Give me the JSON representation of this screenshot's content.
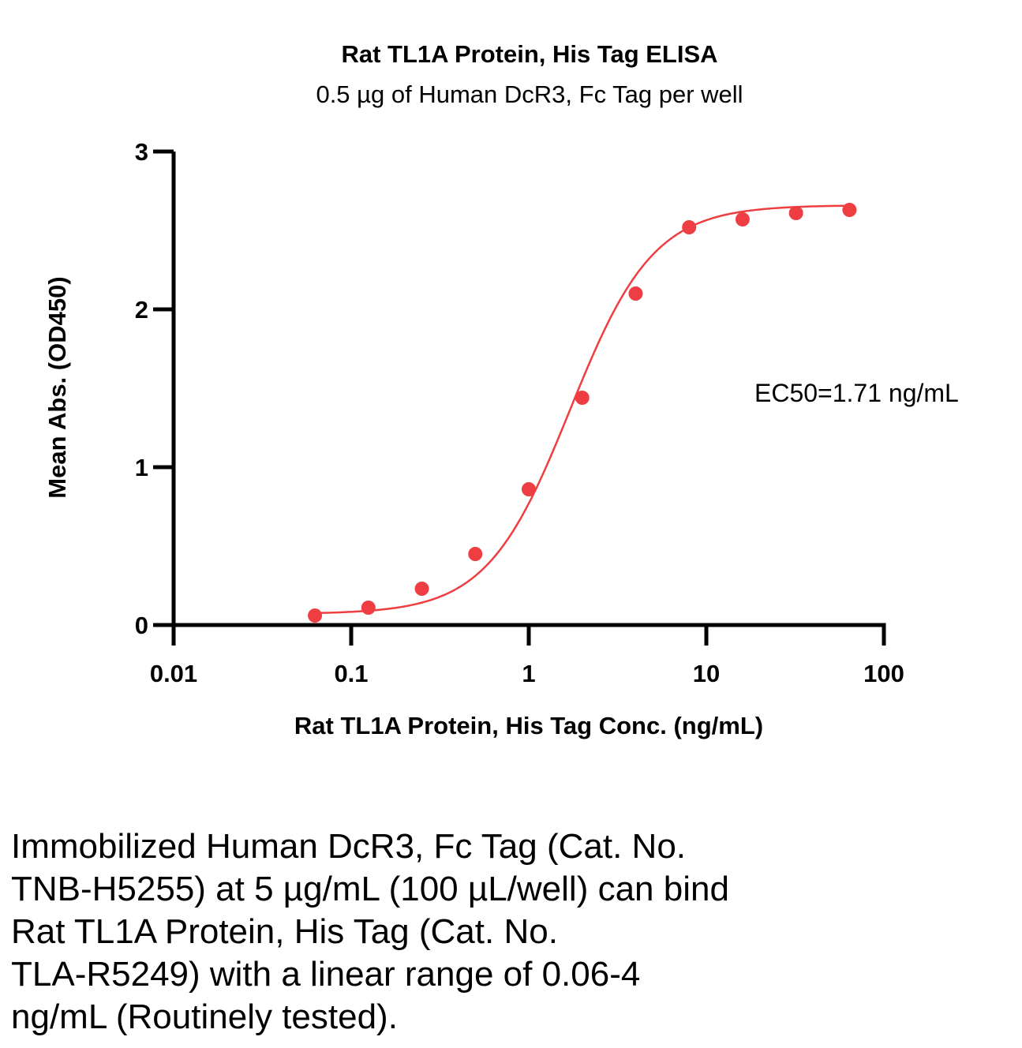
{
  "chart_data": {
    "type": "scatter",
    "title": "Rat TL1A Protein, His Tag ELISA",
    "subtitle": "0.5 µg of Human DcR3, Fc Tag per well",
    "xlabel": "Rat TL1A Protein, His Tag Conc. (ng/mL)",
    "ylabel": "Mean Abs. (OD450)",
    "xscale": "log",
    "xlim": [
      0.01,
      100
    ],
    "ylim": [
      0,
      3
    ],
    "x_ticks": [
      0.01,
      0.1,
      1,
      10,
      100
    ],
    "x_tick_labels": [
      "0.01",
      "0.1",
      "1",
      "10",
      "100"
    ],
    "y_ticks": [
      0,
      1,
      2,
      3
    ],
    "y_tick_labels": [
      "0",
      "1",
      "2",
      "3"
    ],
    "grid": false,
    "series": [
      {
        "name": "Rat TL1A Protein, His Tag",
        "color": "#ef3e42",
        "x": [
          0.0625,
          0.125,
          0.25,
          0.5,
          1,
          2,
          4,
          8,
          16,
          32,
          64
        ],
        "y": [
          0.06,
          0.11,
          0.23,
          0.45,
          0.86,
          1.44,
          2.1,
          2.52,
          2.57,
          2.61,
          2.63
        ]
      }
    ],
    "fit": {
      "type": "4PL",
      "bottom": 0.07,
      "top": 2.66,
      "ec50": 1.71,
      "hill": 1.85
    },
    "annotation": "EC50=1.71 ng/mL"
  },
  "caption_lines": [
    "Immobilized Human DcR3, Fc Tag (Cat. No.",
    "TNB-H5255) at 5 µg/mL (100 µL/well) can bind",
    "Rat TL1A Protein, His Tag (Cat. No.",
    "TLA-R5249) with a linear range of 0.06-4",
    "ng/mL (Routinely tested)."
  ]
}
